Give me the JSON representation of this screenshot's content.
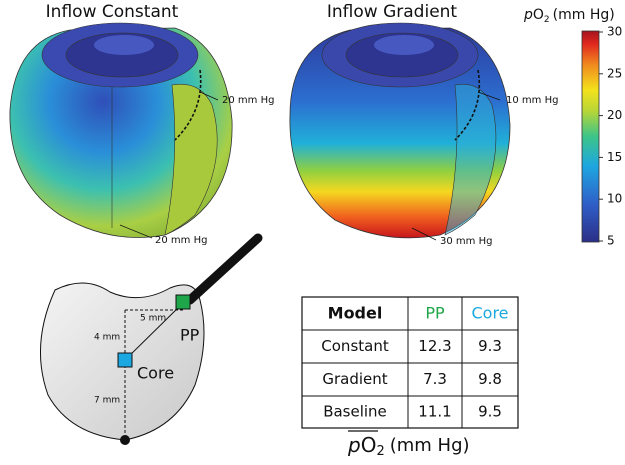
{
  "panels": [
    {
      "title": "Inflow Constant",
      "annotations": [
        "20 mm Hg",
        "20 mm Hg"
      ]
    },
    {
      "title": "Inflow Gradient",
      "annotations": [
        "10 mm Hg",
        "30 mm Hg"
      ]
    }
  ],
  "colorbar": {
    "label": {
      "italic": "p",
      "main": "O",
      "sub": "2",
      "unit": "(mm Hg)"
    },
    "lim": [
      5,
      30
    ],
    "ticks": [
      5,
      10,
      15,
      20,
      25,
      30
    ]
  },
  "diagram": {
    "labels": {
      "pp": "PP",
      "core": "Core",
      "d1": "5 mm",
      "d2": "4 mm",
      "d3": "7 mm"
    }
  },
  "table": {
    "header": [
      "Model",
      "PP",
      "Core"
    ],
    "rows": [
      [
        "Constant",
        12.3,
        9.3
      ],
      [
        "Gradient",
        7.3,
        9.8
      ],
      [
        "Baseline",
        11.1,
        9.5
      ]
    ],
    "caption": {
      "italic": "p",
      "main": "O",
      "sub": "2",
      "unit": "(mm Hg)"
    }
  }
}
